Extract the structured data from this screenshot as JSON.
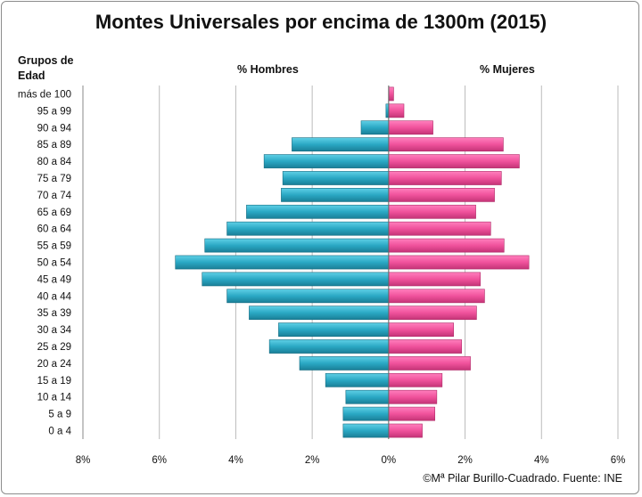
{
  "chart_data": {
    "type": "bar",
    "orientation": "horizontal",
    "title": "Montes Universales por encima de 1300m (2015)",
    "ylabel": "Grupos de Edad",
    "categories": [
      "más de 100",
      "95 a 99",
      "90 a 94",
      "85 a 89",
      "80 a 84",
      "75 a 79",
      "70 a 74",
      "65 a 69",
      "60 a 64",
      "55 a 59",
      "50 a 54",
      "45 a 49",
      "40 a 44",
      "35 a 39",
      "30 a 34",
      "25 a 29",
      "20 a 24",
      "15 a 19",
      "10 a 14",
      "5 a 9",
      "0 a 4"
    ],
    "series": [
      {
        "name": "% Hombres",
        "color": "#2aa8c4",
        "values": [
          0,
          0.07,
          0.72,
          2.53,
          3.26,
          2.77,
          2.81,
          3.72,
          4.23,
          4.81,
          5.58,
          4.88,
          4.23,
          3.65,
          2.88,
          3.12,
          2.33,
          1.65,
          1.12,
          1.19,
          1.19
        ]
      },
      {
        "name": "% Mujeres",
        "color": "#f0529c",
        "values": [
          0.13,
          0.4,
          1.16,
          3.0,
          3.42,
          2.95,
          2.77,
          2.28,
          2.67,
          3.02,
          3.67,
          2.4,
          2.51,
          2.3,
          1.7,
          1.91,
          2.14,
          1.4,
          1.26,
          1.21,
          0.88
        ]
      }
    ],
    "xlim": [
      -8,
      6
    ],
    "xticks": [
      "8%",
      "6%",
      "4%",
      "2%",
      "0%",
      "2%",
      "4%",
      "6%"
    ],
    "grid": true,
    "legend": "none"
  },
  "footer": "©Mª Pilar Burillo-Cuadrado. Fuente: INE"
}
